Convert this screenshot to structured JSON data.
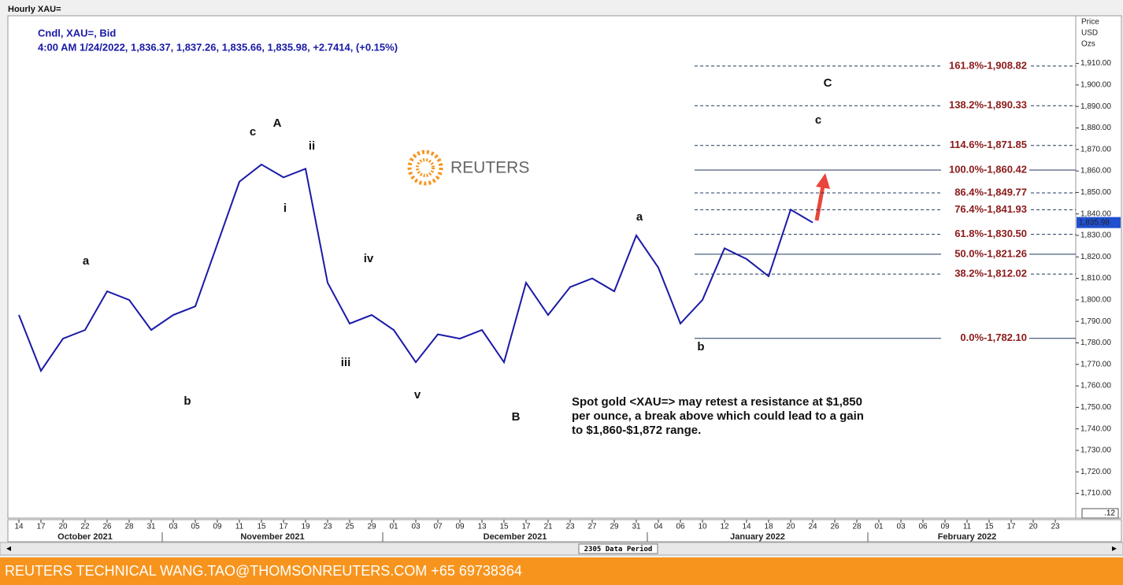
{
  "chart_data": {
    "type": "line",
    "title": "Hourly XAU=",
    "legend_text": "Cndl, XAU=, Bid",
    "quote_text": "4:00 AM 1/24/2022, 1,836.37, 1,837.26, 1,835.66, 1,835.98, +2.7414, (+0.15%)",
    "y_label": [
      "Price",
      "USD",
      "Ozs"
    ],
    "corner_label": ".12",
    "logo": "REUTERS",
    "data_period": "2305 Data Period",
    "categories": [
      "14",
      "17",
      "20",
      "22",
      "26",
      "28",
      "31",
      "03",
      "05",
      "09",
      "11",
      "15",
      "17",
      "19",
      "23",
      "25",
      "29",
      "01",
      "03",
      "07",
      "09",
      "13",
      "15",
      "17",
      "21",
      "23",
      "27",
      "29",
      "31",
      "04",
      "06",
      "10",
      "12",
      "14",
      "18",
      "20",
      "24",
      "26",
      "28",
      "01",
      "03",
      "06",
      "09",
      "11",
      "15",
      "17",
      "20",
      "23"
    ],
    "months": [
      "October 2021",
      "November 2021",
      "December 2021",
      "January 2022",
      "February 2022"
    ],
    "series": [
      {
        "name": "XAU=",
        "color": "#1a1aa6",
        "values": [
          1793,
          1767,
          1782,
          1786,
          1804,
          1800,
          1786,
          1793,
          1797,
          1826,
          1855,
          1863,
          1857,
          1861,
          1808,
          1789,
          1793,
          1786,
          1771,
          1784,
          1782,
          1786,
          1771,
          1808,
          1793,
          1806,
          1810,
          1804,
          1830,
          1815,
          1789,
          1800,
          1824,
          1819,
          1811,
          1842,
          1835.98,
          null,
          null,
          null,
          null,
          null,
          null,
          null,
          null,
          null,
          null,
          null
        ]
      }
    ],
    "last_price": {
      "value": 1835.98,
      "label": "1,835.98"
    },
    "ylim": [
      1698.5,
      1932.2
    ],
    "yticks": [
      {
        "value": 1710,
        "label": "1,710.00"
      },
      {
        "value": 1720,
        "label": "1,720.00"
      },
      {
        "value": 1730,
        "label": "1,730.00"
      },
      {
        "value": 1740,
        "label": "1,740.00"
      },
      {
        "value": 1750,
        "label": "1,750.00"
      },
      {
        "value": 1760,
        "label": "1,760.00"
      },
      {
        "value": 1770,
        "label": "1,770.00"
      },
      {
        "value": 1780,
        "label": "1,780.00"
      },
      {
        "value": 1790,
        "label": "1,790.00"
      },
      {
        "value": 1800,
        "label": "1,800.00"
      },
      {
        "value": 1810,
        "label": "1,810.00"
      },
      {
        "value": 1820,
        "label": "1,820.00"
      },
      {
        "value": 1830,
        "label": "1,830.00"
      },
      {
        "value": 1840,
        "label": "1,840.00"
      },
      {
        "value": 1850,
        "label": "1,850.00"
      },
      {
        "value": 1860,
        "label": "1,860.00"
      },
      {
        "value": 1870,
        "label": "1,870.00"
      },
      {
        "value": 1880,
        "label": "1,880.00"
      },
      {
        "value": 1890,
        "label": "1,890.00"
      },
      {
        "value": 1900,
        "label": "1,900.00"
      },
      {
        "value": 1910,
        "label": "1,910.00"
      }
    ],
    "fib_levels": [
      {
        "label": "161.8%-1,908.82",
        "value": 1908.82,
        "dashed": true
      },
      {
        "label": "138.2%-1,890.33",
        "value": 1890.33,
        "dashed": true
      },
      {
        "label": "114.6%-1,871.85",
        "value": 1871.85,
        "dashed": true
      },
      {
        "label": "100.0%-1,860.42",
        "value": 1860.42,
        "dashed": false
      },
      {
        "label": "86.4%-1,849.77",
        "value": 1849.77,
        "dashed": true
      },
      {
        "label": "76.4%-1,841.93",
        "value": 1841.93,
        "dashed": true
      },
      {
        "label": "61.8%-1,830.50",
        "value": 1830.5,
        "dashed": true
      },
      {
        "label": "50.0%-1,821.26",
        "value": 1821.26,
        "dashed": false
      },
      {
        "label": "38.2%-1,812.02",
        "value": 1812.02,
        "dashed": true
      },
      {
        "label": "0.0%-1,782.10",
        "value": 1782.1,
        "dashed": false
      }
    ],
    "fib_color": "#1f3a5f",
    "wave_labels": [
      "A",
      "c",
      "ii",
      "i",
      "a",
      "b",
      "iv",
      "iii",
      "v",
      "B",
      "a",
      "b",
      "C",
      "c"
    ],
    "note": [
      "Spot gold <XAU=> may retest a resistance at $1,850",
      "per ounce, a break above which could lead to a gain",
      "to $1,860-$1,872 range."
    ]
  },
  "footer": "REUTERS TECHNICAL  WANG.TAO@THOMSONREUTERS.COM  +65 69738364"
}
